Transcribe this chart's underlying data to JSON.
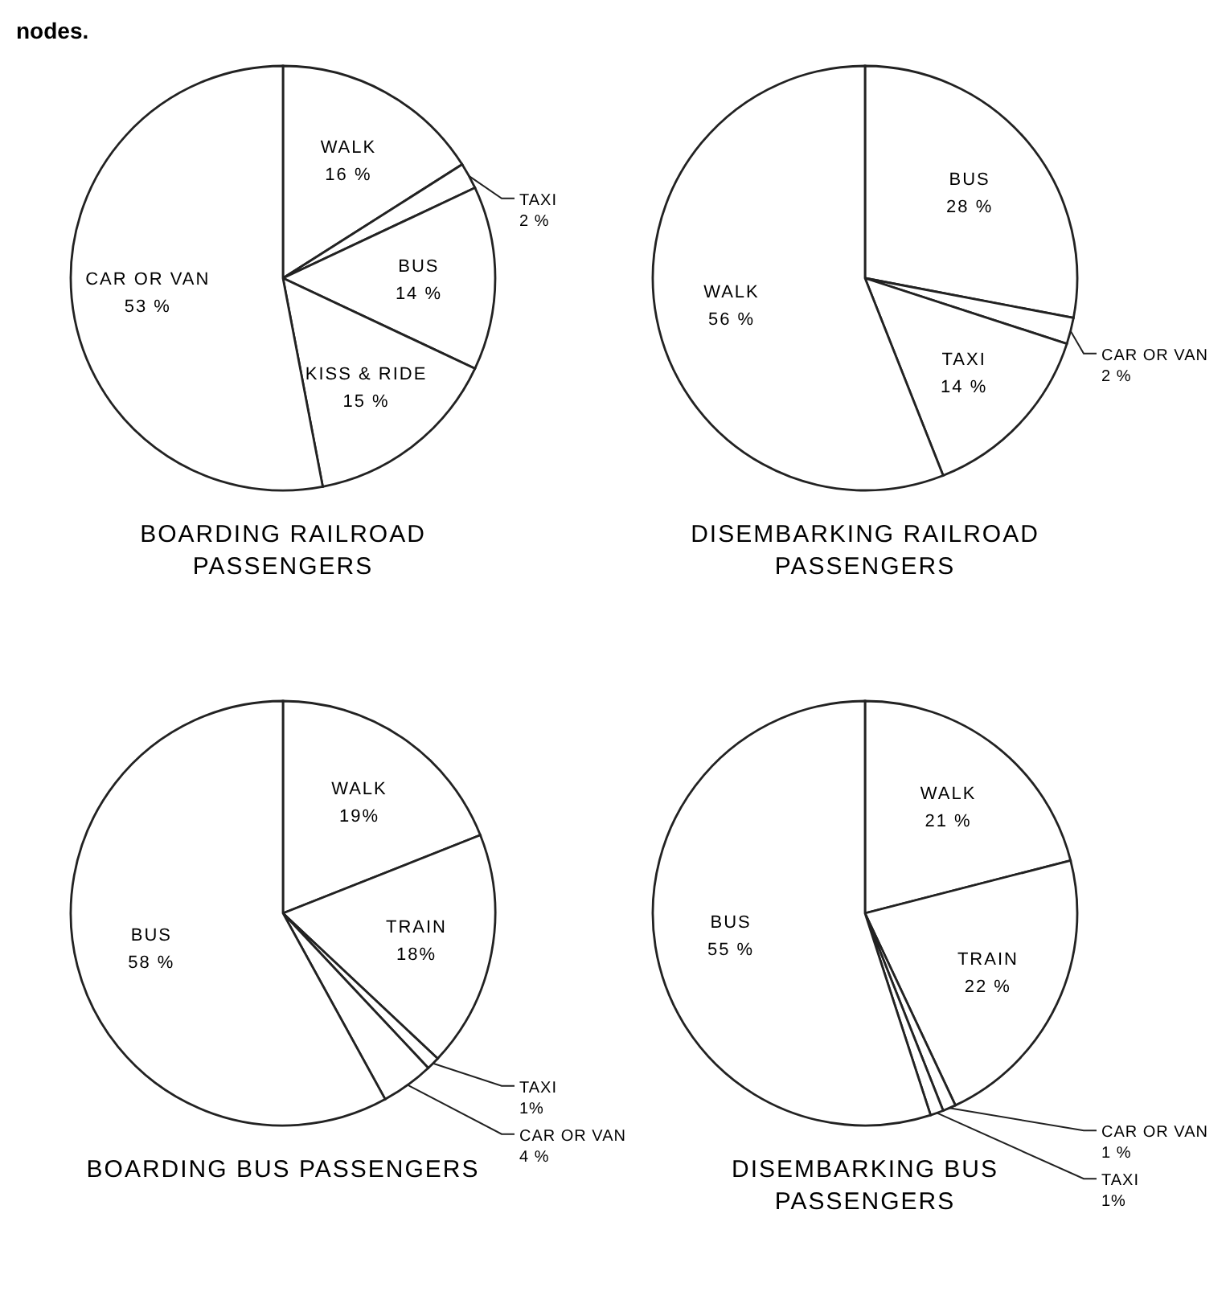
{
  "chart_data": [
    {
      "type": "pie",
      "title": "BOARDING RAILROAD PASSENGERS",
      "annotations": [
        "nodes."
      ],
      "categories": [
        "WALK",
        "TAXI",
        "BUS",
        "KISS & RIDE",
        "CAR OR VAN"
      ],
      "values": [
        16,
        2,
        14,
        15,
        53
      ],
      "value_labels": [
        "16 %",
        "2 %",
        "14 %",
        "15 %",
        "53 %"
      ],
      "colors": [
        "#ffffff",
        "#ffffff",
        "#ffffff",
        "#ffffff",
        "#ffffff"
      ]
    },
    {
      "type": "pie",
      "title": "DISEMBARKING RAILROAD PASSENGERS",
      "categories": [
        "BUS",
        "CAR OR VAN",
        "TAXI",
        "WALK"
      ],
      "values": [
        28,
        2,
        14,
        56
      ],
      "value_labels": [
        "28 %",
        "2 %",
        "14 %",
        "56 %"
      ],
      "colors": [
        "#ffffff",
        "#ffffff",
        "#ffffff",
        "#ffffff"
      ]
    },
    {
      "type": "pie",
      "title": "BOARDING BUS PASSENGERS",
      "categories": [
        "WALK",
        "TRAIN",
        "TAXI",
        "CAR OR VAN",
        "BUS"
      ],
      "values": [
        19,
        18,
        1,
        4,
        58
      ],
      "value_labels": [
        "19%",
        "18%",
        "1%",
        "4 %",
        "58 %"
      ],
      "colors": [
        "#ffffff",
        "#ffffff",
        "#ffffff",
        "#ffffff",
        "#ffffff"
      ]
    },
    {
      "type": "pie",
      "title": "DISEMBARKING BUS PASSENGERS",
      "categories": [
        "WALK",
        "TRAIN",
        "CAR OR VAN",
        "TAXI",
        "BUS"
      ],
      "values": [
        21,
        22,
        1,
        1,
        55
      ],
      "value_labels": [
        "21 %",
        "22 %",
        "1 %",
        "1%",
        "55 %"
      ],
      "colors": [
        "#ffffff",
        "#ffffff",
        "#ffffff",
        "#ffffff",
        "#ffffff"
      ]
    }
  ]
}
